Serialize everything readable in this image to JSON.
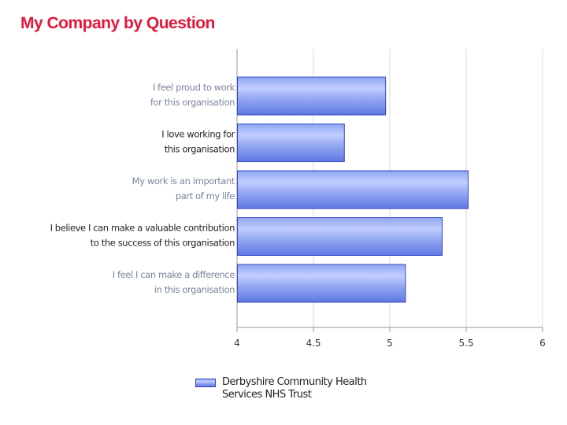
{
  "title": "My Company by Question",
  "chart_data": {
    "type": "bar",
    "orientation": "horizontal",
    "title": "My Company by Question",
    "xlabel": "",
    "ylabel": "",
    "categories": [
      [
        "I feel proud to work",
        "for this organisation"
      ],
      [
        "I love working for",
        "this organisation"
      ],
      [
        "My work is an important",
        "part of my life"
      ],
      [
        "I believe I can make a valuable contribution",
        "to the success of this organisation"
      ],
      [
        "I feel I can make a difference",
        "in this organisation"
      ]
    ],
    "category_label_colors": [
      "#7a869c",
      "#222222",
      "#7a869c",
      "#222222",
      "#7a869c"
    ],
    "series": [
      {
        "name": "Derbyshire Community Health Services NHS Trust",
        "values": [
          4.97,
          4.7,
          5.51,
          5.34,
          5.1
        ],
        "color": "#6f86ea"
      }
    ],
    "xlim": [
      4,
      6
    ],
    "xticks": [
      4,
      4.5,
      5,
      5.5,
      6
    ],
    "xtick_labels": [
      "4",
      "4.5",
      "5",
      "5.5",
      "6"
    ],
    "grid": "vertical",
    "legend_position": "bottom"
  },
  "legend": {
    "label": "Derbyshire Community Health Services NHS Trust"
  },
  "colors": {
    "title": "#e3173b",
    "bar_edge": "#3348c4",
    "bar_light": "#c2ceff",
    "bar_dark": "#5f78e3",
    "grid": "#d9d9d9",
    "axis": "#999999"
  }
}
